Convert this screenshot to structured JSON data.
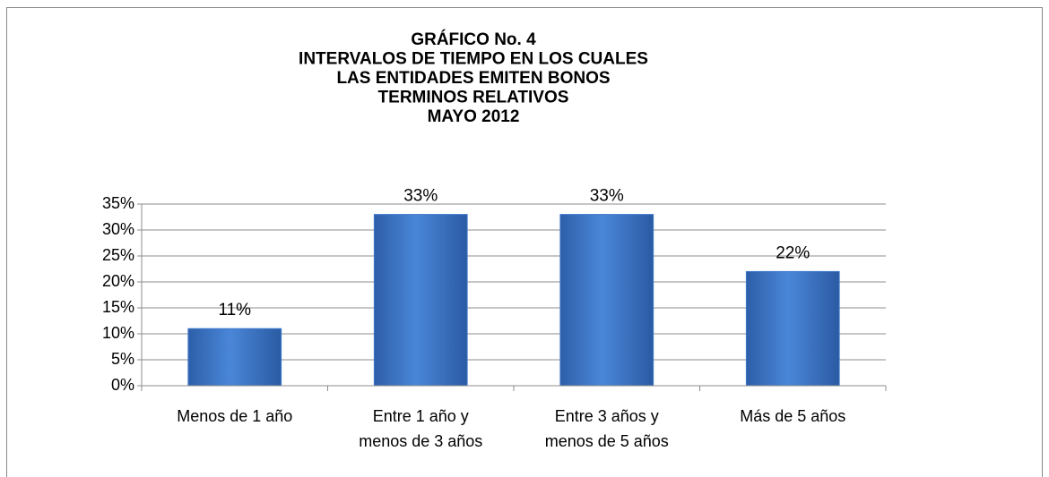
{
  "chart_data": {
    "type": "bar",
    "title": [
      "GRÁFICO No. 4",
      "INTERVALOS DE TIEMPO EN LOS CUALES",
      "LAS ENTIDADES  EMITEN BONOS",
      "TERMINOS RELATIVOS",
      "MAYO 2012"
    ],
    "categories": [
      [
        "Menos de 1 año"
      ],
      [
        "Entre 1 año y",
        "menos de 3 años"
      ],
      [
        "Entre 3 años y",
        "menos de 5 años"
      ],
      [
        "Más de 5 años"
      ]
    ],
    "values": [
      11,
      33,
      33,
      22
    ],
    "value_labels": [
      "11%",
      "33%",
      "33%",
      "22%"
    ],
    "color": "#3f78cc",
    "ylim": [
      0,
      35
    ],
    "yticks": [
      {
        "value": 0,
        "label": "0%"
      },
      {
        "value": 5,
        "label": "5%"
      },
      {
        "value": 10,
        "label": "10%"
      },
      {
        "value": 15,
        "label": "15%"
      },
      {
        "value": 20,
        "label": "20%"
      },
      {
        "value": 25,
        "label": "25%"
      },
      {
        "value": 30,
        "label": "30%"
      },
      {
        "value": 35,
        "label": "35%"
      }
    ],
    "grid": true
  }
}
